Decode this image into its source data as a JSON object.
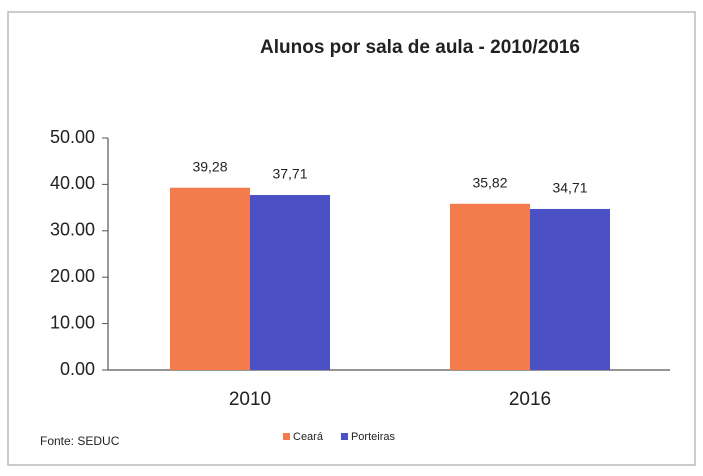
{
  "chart_data": {
    "type": "bar",
    "title": "Alunos por sala de aula - 2010/2016",
    "categories": [
      "2010",
      "2016"
    ],
    "series": [
      {
        "name": "Ceará",
        "color": "#f47c4c",
        "values": [
          39.28,
          35.82
        ],
        "value_labels": [
          "39,28",
          "35,82"
        ]
      },
      {
        "name": "Porteiras",
        "color": "#4b50c4",
        "values": [
          37.71,
          34.71
        ],
        "value_labels": [
          "37,71",
          "34,71"
        ]
      }
    ],
    "ylim": [
      0,
      50
    ],
    "yticks": [
      {
        "value": 0,
        "label": "0.00"
      },
      {
        "value": 10,
        "label": "10.00"
      },
      {
        "value": 20,
        "label": "20.00"
      },
      {
        "value": 30,
        "label": "30.00"
      },
      {
        "value": 40,
        "label": "40.00"
      },
      {
        "value": 50,
        "label": "50.00"
      }
    ],
    "grid": false,
    "legend": "bottom",
    "source": "Fonte: SEDUC"
  }
}
